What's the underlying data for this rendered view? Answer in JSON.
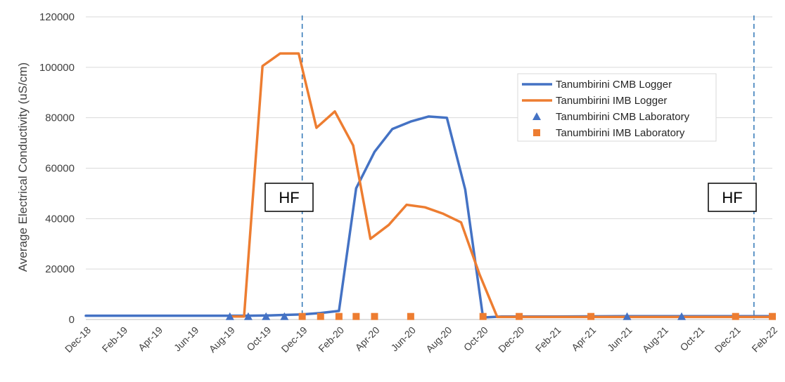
{
  "chart_data": {
    "type": "line",
    "ylabel": "Average Electrical Conductivity (uS/cm)",
    "xlabel": "",
    "ylim": [
      0,
      120000
    ],
    "yticks": [
      0,
      20000,
      40000,
      60000,
      80000,
      100000,
      120000
    ],
    "ytick_labels": [
      "0",
      "20000",
      "40000",
      "60000",
      "80000",
      "100000",
      "120000"
    ],
    "xlim": [
      "2018-12-01",
      "2022-02-01"
    ],
    "categories": [
      "Dec-18",
      "Feb-19",
      "Apr-19",
      "Jun-19",
      "Aug-19",
      "Oct-19",
      "Dec-19",
      "Feb-20",
      "Apr-20",
      "Jun-20",
      "Aug-20",
      "Oct-20",
      "Dec-20",
      "Feb-21",
      "Apr-21",
      "Jun-21",
      "Aug-21",
      "Oct-21",
      "Dec-21",
      "Feb-22"
    ],
    "grid": true,
    "legend_position": "top-right",
    "colors": {
      "cmb": "#4472C4",
      "imb": "#ED7D31",
      "hf_line": "#2E75B6"
    },
    "series": [
      {
        "name": "Tanumbirini CMB Logger",
        "kind": "line",
        "color": "#4472C4",
        "x": [
          "2018-12-01",
          "2019-03-15",
          "2019-08-01",
          "2019-09-01",
          "2019-10-01",
          "2019-11-01",
          "2019-12-01",
          "2020-01-01",
          "2020-02-01",
          "2020-03-01",
          "2020-04-01",
          "2020-05-01",
          "2020-06-01",
          "2020-07-01",
          "2020-08-01",
          "2020-09-01",
          "2020-10-01",
          "2020-11-01",
          "2021-02-01",
          "2021-06-01",
          "2021-10-01",
          "2022-02-01"
        ],
        "y": [
          1500,
          1500,
          1500,
          1500,
          1600,
          1800,
          2000,
          2600,
          3400,
          52000,
          66500,
          75500,
          78500,
          80500,
          80000,
          51500,
          800,
          1200,
          1200,
          1300,
          1300,
          1300
        ]
      },
      {
        "name": "Tanumbirini IMB Logger",
        "kind": "line",
        "color": "#ED7D31",
        "x": [
          "2019-08-01",
          "2019-08-25",
          "2019-09-25",
          "2019-10-25",
          "2019-11-25",
          "2019-12-25",
          "2020-01-25",
          "2020-02-25",
          "2020-03-25",
          "2020-04-25",
          "2020-05-25",
          "2020-06-25",
          "2020-07-25",
          "2020-08-25",
          "2020-09-25",
          "2020-10-25",
          "2020-11-25",
          "2021-02-01",
          "2021-06-01",
          "2021-10-01",
          "2022-02-01"
        ],
        "y": [
          1200,
          1200,
          100500,
          105500,
          105500,
          76000,
          82500,
          69000,
          32000,
          37500,
          45500,
          44500,
          42000,
          38500,
          18000,
          1000,
          1000,
          1000,
          1000,
          1000,
          1000
        ]
      },
      {
        "name": "Tanumbirini CMB Laboratory",
        "kind": "marker",
        "marker": "triangle",
        "color": "#4472C4",
        "x": [
          "2019-08-01",
          "2019-09-01",
          "2019-10-01",
          "2019-11-01",
          "2021-06-01",
          "2021-09-01"
        ],
        "y": [
          1200,
          1200,
          1200,
          1200,
          1200,
          1200
        ]
      },
      {
        "name": "Tanumbirini IMB Laboratory",
        "kind": "marker",
        "marker": "square",
        "color": "#ED7D31",
        "x": [
          "2019-12-01",
          "2020-01-01",
          "2020-02-01",
          "2020-03-01",
          "2020-04-01",
          "2020-06-01",
          "2020-10-01",
          "2020-12-01",
          "2021-04-01",
          "2021-12-01",
          "2022-02-01"
        ],
        "y": [
          1200,
          1200,
          1200,
          1200,
          1200,
          1200,
          1200,
          1200,
          1200,
          1200,
          1200
        ]
      }
    ],
    "annotations": [
      {
        "type": "vline",
        "x": "2019-12-01",
        "label": "HF"
      },
      {
        "type": "vline",
        "x": "2022-01-01",
        "label": "HF"
      }
    ]
  }
}
